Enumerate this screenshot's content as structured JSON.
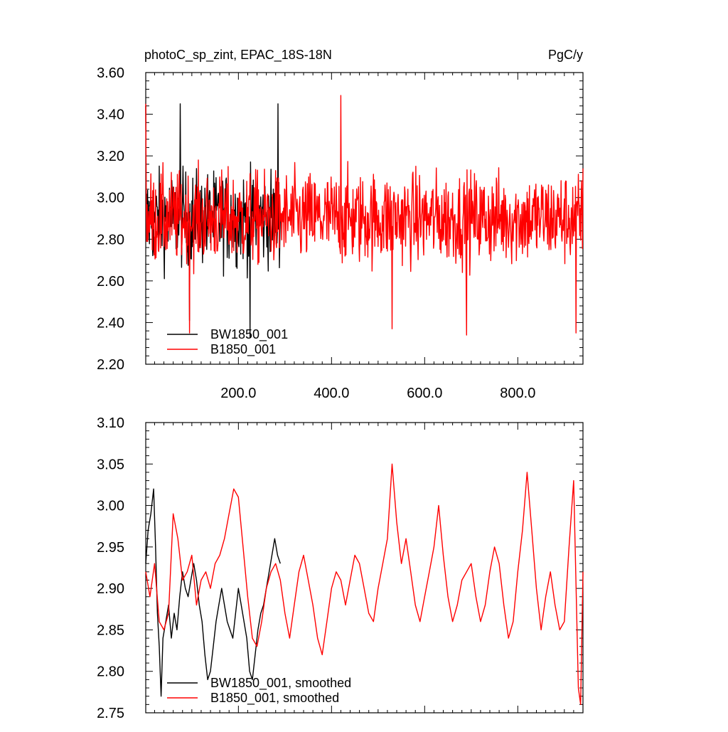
{
  "title_left": "photoC_sp_zint, EPAC_18S-18N",
  "title_right": "PgC/y",
  "colors": {
    "BW1850_001": "#000000",
    "B1850_001": "#ff0000"
  },
  "chart_data": [
    {
      "type": "line",
      "title": "photoC_sp_zint, EPAC_18S-18N",
      "units": "PgC/y",
      "xlim": [
        1,
        940
      ],
      "ylim": [
        2.2,
        3.6
      ],
      "x_ticks": [
        "200.0",
        "400.0",
        "600.0",
        "800.0"
      ],
      "y_ticks": [
        "2.20",
        "2.40",
        "2.60",
        "2.80",
        "3.00",
        "3.20",
        "3.40",
        "3.60"
      ],
      "legend_position": "bottom-left",
      "series": [
        {
          "name": "BW1850_001",
          "color": "#000000",
          "x_range": [
            1,
            290
          ],
          "mean": 2.9,
          "min": 2.3,
          "max": 3.46,
          "key_points": [
            [
              1,
              3.44
            ],
            [
              75,
              3.45
            ],
            [
              95,
              2.41
            ],
            [
              225,
              2.33
            ],
            [
              285,
              3.45
            ],
            [
              290,
              2.9
            ]
          ]
        },
        {
          "name": "B1850_001",
          "color": "#ff0000",
          "x_range": [
            1,
            940
          ],
          "mean": 2.9,
          "min": 2.34,
          "max": 3.49,
          "key_points": [
            [
              1,
              3.45
            ],
            [
              95,
              2.35
            ],
            [
              420,
              3.49
            ],
            [
              530,
              2.37
            ],
            [
              690,
              2.34
            ],
            [
              925,
              2.35
            ],
            [
              940,
              3.14
            ]
          ]
        }
      ]
    },
    {
      "type": "line",
      "title": "",
      "xlim": [
        1,
        940
      ],
      "ylim": [
        2.75,
        3.1
      ],
      "y_ticks": [
        "2.75",
        "2.80",
        "2.85",
        "2.90",
        "2.95",
        "3.00",
        "3.05",
        "3.10"
      ],
      "legend_position": "bottom-left",
      "series": [
        {
          "name": "BW1850_001, smoothed",
          "color": "#000000",
          "x_range": [
            1,
            290
          ],
          "points": [
            [
              1,
              2.93
            ],
            [
              6,
              2.97
            ],
            [
              12,
              2.99
            ],
            [
              18,
              3.02
            ],
            [
              22,
              2.95
            ],
            [
              26,
              2.87
            ],
            [
              30,
              2.83
            ],
            [
              34,
              2.77
            ],
            [
              38,
              2.84
            ],
            [
              44,
              2.86
            ],
            [
              50,
              2.88
            ],
            [
              56,
              2.84
            ],
            [
              62,
              2.87
            ],
            [
              68,
              2.85
            ],
            [
              74,
              2.89
            ],
            [
              80,
              2.92
            ],
            [
              86,
              2.9
            ],
            [
              92,
              2.89
            ],
            [
              98,
              2.91
            ],
            [
              104,
              2.93
            ],
            [
              110,
              2.91
            ],
            [
              116,
              2.88
            ],
            [
              122,
              2.86
            ],
            [
              128,
              2.82
            ],
            [
              134,
              2.79
            ],
            [
              140,
              2.8
            ],
            [
              146,
              2.83
            ],
            [
              152,
              2.86
            ],
            [
              158,
              2.88
            ],
            [
              164,
              2.9
            ],
            [
              170,
              2.88
            ],
            [
              176,
              2.86
            ],
            [
              182,
              2.85
            ],
            [
              188,
              2.84
            ],
            [
              194,
              2.87
            ],
            [
              200,
              2.9
            ],
            [
              206,
              2.88
            ],
            [
              212,
              2.86
            ],
            [
              218,
              2.84
            ],
            [
              224,
              2.8
            ],
            [
              230,
              2.79
            ],
            [
              236,
              2.82
            ],
            [
              242,
              2.85
            ],
            [
              248,
              2.87
            ],
            [
              254,
              2.88
            ],
            [
              260,
              2.9
            ],
            [
              266,
              2.92
            ],
            [
              272,
              2.94
            ],
            [
              278,
              2.96
            ],
            [
              284,
              2.94
            ],
            [
              290,
              2.93
            ]
          ]
        },
        {
          "name": "B1850_001, smoothed",
          "color": "#ff0000",
          "x_range": [
            1,
            940
          ],
          "points": [
            [
              1,
              2.92
            ],
            [
              10,
              2.89
            ],
            [
              20,
              2.93
            ],
            [
              30,
              2.86
            ],
            [
              40,
              2.85
            ],
            [
              50,
              2.87
            ],
            [
              60,
              2.99
            ],
            [
              70,
              2.96
            ],
            [
              80,
              2.91
            ],
            [
              90,
              2.92
            ],
            [
              100,
              2.94
            ],
            [
              110,
              2.88
            ],
            [
              120,
              2.91
            ],
            [
              130,
              2.92
            ],
            [
              140,
              2.9
            ],
            [
              150,
              2.93
            ],
            [
              160,
              2.94
            ],
            [
              170,
              2.96
            ],
            [
              180,
              2.99
            ],
            [
              190,
              3.02
            ],
            [
              200,
              3.01
            ],
            [
              210,
              2.95
            ],
            [
              220,
              2.89
            ],
            [
              230,
              2.84
            ],
            [
              240,
              2.83
            ],
            [
              250,
              2.86
            ],
            [
              260,
              2.9
            ],
            [
              270,
              2.92
            ],
            [
              280,
              2.93
            ],
            [
              290,
              2.91
            ],
            [
              300,
              2.87
            ],
            [
              310,
              2.84
            ],
            [
              320,
              2.88
            ],
            [
              330,
              2.92
            ],
            [
              340,
              2.94
            ],
            [
              350,
              2.91
            ],
            [
              360,
              2.88
            ],
            [
              370,
              2.84
            ],
            [
              380,
              2.82
            ],
            [
              390,
              2.86
            ],
            [
              400,
              2.9
            ],
            [
              410,
              2.92
            ],
            [
              420,
              2.91
            ],
            [
              430,
              2.88
            ],
            [
              440,
              2.91
            ],
            [
              450,
              2.94
            ],
            [
              460,
              2.93
            ],
            [
              470,
              2.9
            ],
            [
              480,
              2.87
            ],
            [
              490,
              2.86
            ],
            [
              500,
              2.9
            ],
            [
              510,
              2.93
            ],
            [
              520,
              2.96
            ],
            [
              530,
              3.05
            ],
            [
              540,
              2.98
            ],
            [
              550,
              2.93
            ],
            [
              560,
              2.96
            ],
            [
              570,
              2.92
            ],
            [
              580,
              2.88
            ],
            [
              590,
              2.86
            ],
            [
              600,
              2.89
            ],
            [
              610,
              2.92
            ],
            [
              620,
              2.95
            ],
            [
              630,
              3.0
            ],
            [
              640,
              2.94
            ],
            [
              650,
              2.89
            ],
            [
              660,
              2.86
            ],
            [
              670,
              2.88
            ],
            [
              680,
              2.91
            ],
            [
              690,
              2.92
            ],
            [
              700,
              2.93
            ],
            [
              710,
              2.89
            ],
            [
              720,
              2.86
            ],
            [
              730,
              2.88
            ],
            [
              740,
              2.92
            ],
            [
              750,
              2.95
            ],
            [
              760,
              2.93
            ],
            [
              770,
              2.88
            ],
            [
              780,
              2.84
            ],
            [
              790,
              2.86
            ],
            [
              800,
              2.92
            ],
            [
              810,
              2.97
            ],
            [
              820,
              3.04
            ],
            [
              830,
              2.97
            ],
            [
              840,
              2.9
            ],
            [
              850,
              2.85
            ],
            [
              860,
              2.89
            ],
            [
              870,
              2.92
            ],
            [
              880,
              2.88
            ],
            [
              890,
              2.85
            ],
            [
              900,
              2.86
            ],
            [
              910,
              2.95
            ],
            [
              920,
              3.03
            ],
            [
              930,
              2.78
            ],
            [
              935,
              2.76
            ],
            [
              940,
              2.92
            ]
          ]
        }
      ]
    }
  ]
}
